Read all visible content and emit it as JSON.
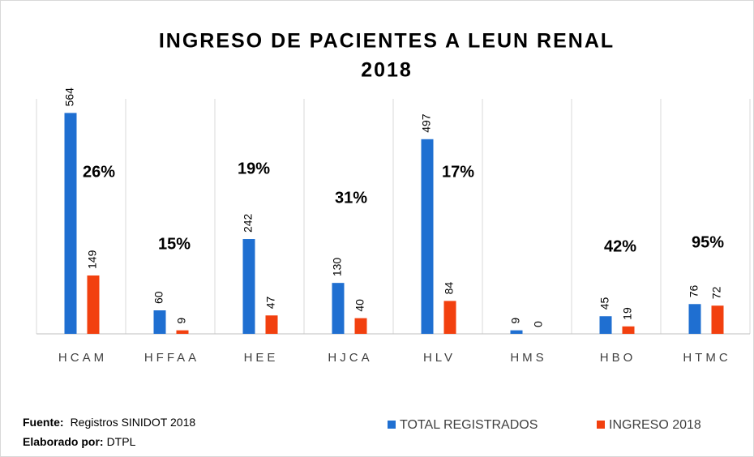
{
  "chart_data": {
    "type": "bar",
    "title": [
      "INGRESO DE PACIENTES A LEUN RENAL",
      "2018"
    ],
    "categories": [
      "HCAM",
      "HFFAA",
      "HEE",
      "HJCA",
      "HLV",
      "HMS",
      "HBO",
      "HTMC"
    ],
    "series": [
      {
        "name": "TOTAL REGISTRADOS",
        "color": "#1f6fd1",
        "values": [
          564,
          60,
          242,
          130,
          497,
          9,
          45,
          76
        ]
      },
      {
        "name": "INGRESO 2018",
        "color": "#f2400f",
        "values": [
          149,
          9,
          47,
          40,
          84,
          0,
          19,
          72
        ]
      }
    ],
    "annotations": [
      "26%",
      "15%",
      "19%",
      "31%",
      "17%",
      null,
      "42%",
      "95%"
    ],
    "ylim": [
      0,
      600
    ],
    "legend": "bottom-right",
    "source": {
      "label": "Fuente:",
      "text": "Registros SINIDOT 2018",
      "author_label": "Elaborado por:",
      "author": "DTPL"
    }
  }
}
